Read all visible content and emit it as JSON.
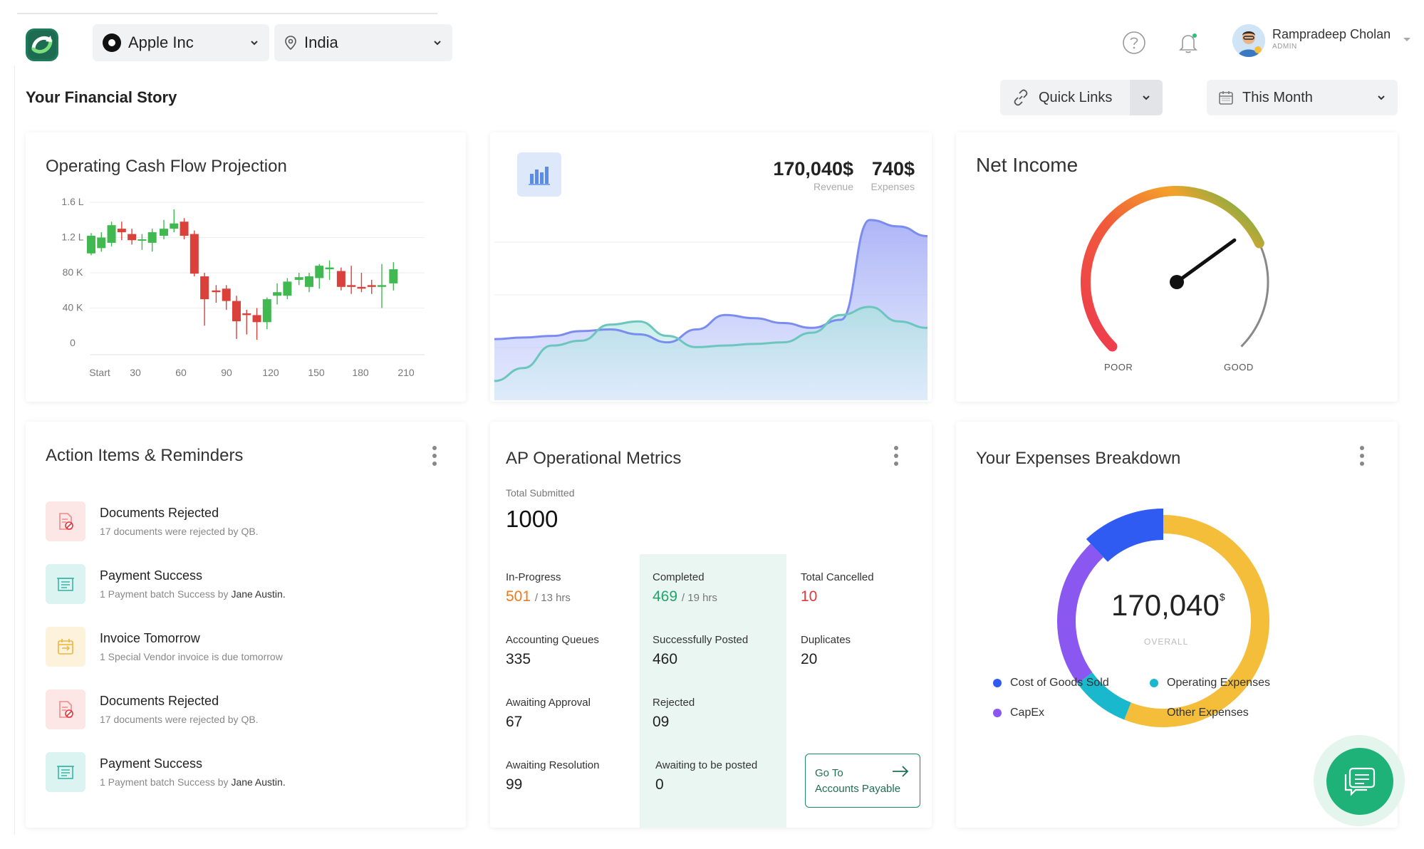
{
  "header": {
    "company": "Apple Inc",
    "country": "India",
    "user": {
      "name": "Rampradeep Cholan",
      "role": "ADMIN"
    },
    "page_title": "Your Financial Story",
    "quick_links": "Quick Links",
    "period": "This Month"
  },
  "cashflow": {
    "title": "Operating Cash Flow Projection",
    "chart_data": {
      "type": "candlestick",
      "y_ticks": [
        "1.6 L",
        "1.2 L",
        "80 K",
        "40 K",
        "0"
      ],
      "x_ticks": [
        "Start",
        "30",
        "60",
        "90",
        "120",
        "150",
        "180",
        "210"
      ],
      "ylim": [
        0,
        160000
      ],
      "candles": [
        {
          "x": 0,
          "open": 102000,
          "close": 122000,
          "high": 125000,
          "low": 100000
        },
        {
          "x": 7,
          "open": 108000,
          "close": 120000,
          "high": 126000,
          "low": 104000
        },
        {
          "x": 14,
          "open": 114000,
          "close": 134000,
          "high": 138000,
          "low": 110000
        },
        {
          "x": 21,
          "open": 130000,
          "close": 126000,
          "high": 138000,
          "low": 117000
        },
        {
          "x": 28,
          "open": 124000,
          "close": 117000,
          "high": 130000,
          "low": 112000
        },
        {
          "x": 35,
          "open": 118000,
          "close": 118000,
          "high": 124000,
          "low": 106000
        },
        {
          "x": 42,
          "open": 114000,
          "close": 126000,
          "high": 130000,
          "low": 104000
        },
        {
          "x": 50,
          "open": 122000,
          "close": 130000,
          "high": 140000,
          "low": 118000
        },
        {
          "x": 57,
          "open": 130000,
          "close": 136000,
          "high": 152000,
          "low": 126000
        },
        {
          "x": 64,
          "open": 138000,
          "close": 122000,
          "high": 142000,
          "low": 118000
        },
        {
          "x": 71,
          "open": 124000,
          "close": 79000,
          "high": 128000,
          "low": 76000
        },
        {
          "x": 78,
          "open": 76000,
          "close": 50000,
          "high": 80000,
          "low": 20000
        },
        {
          "x": 86,
          "open": 60000,
          "close": 58000,
          "high": 66000,
          "low": 46000
        },
        {
          "x": 93,
          "open": 62000,
          "close": 48000,
          "high": 66000,
          "low": 38000
        },
        {
          "x": 100,
          "open": 48000,
          "close": 25000,
          "high": 54000,
          "low": 5000
        },
        {
          "x": 107,
          "open": 34000,
          "close": 32000,
          "high": 38000,
          "low": 10000
        },
        {
          "x": 114,
          "open": 32000,
          "close": 24000,
          "high": 40000,
          "low": 4000
        },
        {
          "x": 121,
          "open": 24000,
          "close": 50000,
          "high": 52000,
          "low": 16000
        },
        {
          "x": 128,
          "open": 54000,
          "close": 58000,
          "high": 68000,
          "low": 44000
        },
        {
          "x": 135,
          "open": 54000,
          "close": 70000,
          "high": 74000,
          "low": 50000
        },
        {
          "x": 143,
          "open": 72000,
          "close": 75000,
          "high": 80000,
          "low": 66000
        },
        {
          "x": 150,
          "open": 64000,
          "close": 76000,
          "high": 80000,
          "low": 58000
        },
        {
          "x": 157,
          "open": 74000,
          "close": 88000,
          "high": 90000,
          "low": 62000
        },
        {
          "x": 164,
          "open": 84000,
          "close": 86000,
          "high": 94000,
          "low": 72000
        },
        {
          "x": 172,
          "open": 82000,
          "close": 64000,
          "high": 86000,
          "low": 60000
        },
        {
          "x": 179,
          "open": 66000,
          "close": 64000,
          "high": 88000,
          "low": 56000
        },
        {
          "x": 186,
          "open": 64000,
          "close": 62000,
          "high": 80000,
          "low": 58000
        },
        {
          "x": 193,
          "open": 66000,
          "close": 64000,
          "high": 72000,
          "low": 56000
        },
        {
          "x": 200,
          "open": 64000,
          "close": 66000,
          "high": 90000,
          "low": 40000
        },
        {
          "x": 208,
          "open": 68000,
          "close": 84000,
          "high": 92000,
          "low": 60000
        }
      ]
    }
  },
  "revenue": {
    "revenue_value": "170,040$",
    "revenue_label": "Revenue",
    "expenses_value": "740$",
    "expenses_label": "Expenses",
    "chart_data": {
      "type": "area",
      "series": [
        {
          "name": "Revenue",
          "color": "#7b8cf0",
          "values": [
            0.38,
            0.39,
            0.4,
            0.43,
            0.44,
            0.41,
            0.36,
            0.44,
            0.53,
            0.51,
            0.48,
            0.45,
            0.5,
            1.12,
            1.08,
            1.02
          ]
        },
        {
          "name": "Expenses",
          "color": "#6cc6bd",
          "values": [
            0.12,
            0.2,
            0.34,
            0.37,
            0.47,
            0.49,
            0.4,
            0.33,
            0.34,
            0.35,
            0.36,
            0.42,
            0.53,
            0.58,
            0.49,
            0.45
          ]
        }
      ]
    }
  },
  "netincome": {
    "title": "Net Income",
    "poor": "POOR",
    "good": "GOOD",
    "level": 0.74
  },
  "actions": {
    "title": "Action Items & Reminders",
    "items": [
      {
        "title": "Documents Rejected",
        "desc": "17 documents were rejected by QB.",
        "desc_strong": "",
        "kind": "rejected",
        "icon": "document-rejected-icon"
      },
      {
        "title": "Payment Success",
        "desc": "1 Payment batch Success by",
        "desc_strong": "Jane Austin.",
        "kind": "payment",
        "icon": "payment-batch-icon"
      },
      {
        "title": "Invoice Tomorrow",
        "desc": "1 Special Vendor invoice is due tomorrow",
        "desc_strong": "",
        "kind": "invoice",
        "icon": "calendar-icon"
      },
      {
        "title": "Documents Rejected",
        "desc": "17 documents were rejected by QB.",
        "desc_strong": "",
        "kind": "rejected",
        "icon": "document-rejected-icon"
      },
      {
        "title": "Payment Success",
        "desc": "1 Payment batch Success by",
        "desc_strong": "Jane Austin.",
        "kind": "payment",
        "icon": "payment-batch-icon"
      }
    ],
    "colors": {
      "rejected": "#fde6e6",
      "payment": "#dbf3f1",
      "invoice": "#fdf2dc"
    }
  },
  "ap": {
    "title": "AP Operational Metrics",
    "total_label": "Total Submitted",
    "total_value": "1000",
    "in_progress_label": "In-Progress",
    "in_progress_value": "501",
    "in_progress_hrs": "/ 13 hrs",
    "completed_label": "Completed",
    "completed_value": "469",
    "completed_hrs": "/ 19 hrs",
    "cancelled_label": "Total Cancelled",
    "cancelled_value": "10",
    "queues_label": "Accounting Queues",
    "queues_value": "335",
    "posted_label": "Successfully Posted",
    "posted_value": "460",
    "duplicates_label": "Duplicates",
    "duplicates_value": "20",
    "approval_label": "Awaiting Approval",
    "approval_value": "67",
    "rejected_label": "Rejected",
    "rejected_value": "09",
    "resolution_label": "Awaiting Resolution",
    "resolution_value": "99",
    "tobeposted_label": "Awaiting to be posted",
    "tobeposted_value": "0",
    "goto_line1": "Go To",
    "goto_line2": "Accounts Payable"
  },
  "expenses": {
    "title": "Your Expenses Breakdown",
    "total": "170,040",
    "currency": "$",
    "sub": "OVERALL",
    "chart_data": {
      "type": "pie",
      "segments": [
        {
          "name": "Other Expenses",
          "value": 0.56,
          "color": "#f4bd3a"
        },
        {
          "name": "Operating Expenses",
          "value": 0.09,
          "color": "#19b8cc"
        },
        {
          "name": "CapEx",
          "value": 0.23,
          "color": "#8a58f0"
        },
        {
          "name": "Cost of Goods Sold",
          "value": 0.12,
          "color": "#2f5bf2"
        }
      ]
    },
    "legend": [
      {
        "label": "Cost of Goods Sold",
        "color": "#2f5bf2"
      },
      {
        "label": "Operating Expenses",
        "color": "#19b8cc"
      },
      {
        "label": "CapEx",
        "color": "#8a58f0"
      },
      {
        "label": "Other Expenses",
        "color": "#f4bd3a"
      }
    ]
  }
}
